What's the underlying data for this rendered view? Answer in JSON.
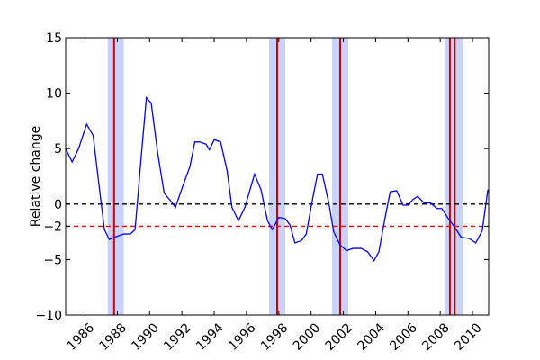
{
  "chart_data": {
    "type": "line",
    "ylabel": "Relative change",
    "x": [
      1984.8,
      1985.2,
      1985.6,
      1986.1,
      1986.5,
      1986.9,
      1987.2,
      1987.5,
      1988.0,
      1988.4,
      1988.8,
      1989.1,
      1989.5,
      1989.8,
      1990.1,
      1990.5,
      1990.9,
      1991.3,
      1991.6,
      1992.0,
      1992.5,
      1992.8,
      1993.1,
      1993.5,
      1993.7,
      1994.0,
      1994.4,
      1994.8,
      1995.1,
      1995.5,
      1995.9,
      1996.3,
      1996.5,
      1996.9,
      1997.3,
      1997.6,
      1998.0,
      1998.4,
      1998.7,
      1999.0,
      1999.4,
      1999.7,
      2000.1,
      2000.4,
      2000.7,
      2001.1,
      2001.4,
      2001.8,
      2002.2,
      2002.6,
      2003.1,
      2003.5,
      2003.9,
      2004.2,
      2004.6,
      2004.9,
      2005.3,
      2005.7,
      2006.0,
      2006.3,
      2006.6,
      2007.0,
      2007.4,
      2007.8,
      2008.1,
      2008.5,
      2008.9,
      2009.3,
      2009.8,
      2010.2,
      2010.6,
      2010.95
    ],
    "series": [
      {
        "color": "#0000ff",
        "values": [
          5.0,
          3.8,
          5.0,
          7.2,
          6.2,
          1.3,
          -2.3,
          -3.2,
          -2.9,
          -2.7,
          -2.7,
          -2.3,
          4.6,
          9.6,
          9.1,
          4.6,
          1.0,
          0.3,
          -0.3,
          1.4,
          3.4,
          5.6,
          5.6,
          5.4,
          4.9,
          5.8,
          5.6,
          3.0,
          -0.3,
          -1.5,
          -0.3,
          1.7,
          2.7,
          1.3,
          -1.5,
          -2.3,
          -1.2,
          -1.3,
          -1.9,
          -3.5,
          -3.3,
          -2.7,
          0.5,
          2.7,
          2.7,
          0.1,
          -2.5,
          -3.7,
          -4.2,
          -4.0,
          -4.0,
          -4.3,
          -5.1,
          -4.3,
          -1.1,
          1.1,
          1.2,
          -0.1,
          -0.1,
          0.4,
          0.7,
          0.1,
          0.1,
          -0.4,
          -0.4,
          -1.3,
          -2.1,
          -3.0,
          -3.1,
          -3.5,
          -2.4,
          1.3
        ]
      }
    ],
    "hlines": [
      {
        "value": 0,
        "color": "#000000"
      },
      {
        "value": -2,
        "color": "#ff0000"
      }
    ],
    "vlines": {
      "color": "#cc0000",
      "values": [
        1987.8,
        1997.9,
        2001.8,
        2008.6,
        2008.9
      ]
    },
    "bands": {
      "color": "#c8d2fa",
      "values": [
        [
          1987.4,
          1988.4
        ],
        [
          1997.4,
          1998.4
        ],
        [
          2001.3,
          2002.3
        ],
        [
          2008.3,
          2009.4
        ]
      ]
    },
    "xlim": [
      1984.8,
      2011.0
    ],
    "xticks": [
      1986,
      1988,
      1990,
      1992,
      1994,
      1996,
      1998,
      2000,
      2002,
      2004,
      2006,
      2008,
      2010
    ],
    "ylim": [
      -10,
      15
    ],
    "yticks": [
      15,
      10,
      5,
      0,
      {
        "value": -2,
        "label": "−2"
      },
      {
        "value": -5,
        "label": "−5"
      },
      {
        "value": -10,
        "label": "−10"
      }
    ]
  }
}
